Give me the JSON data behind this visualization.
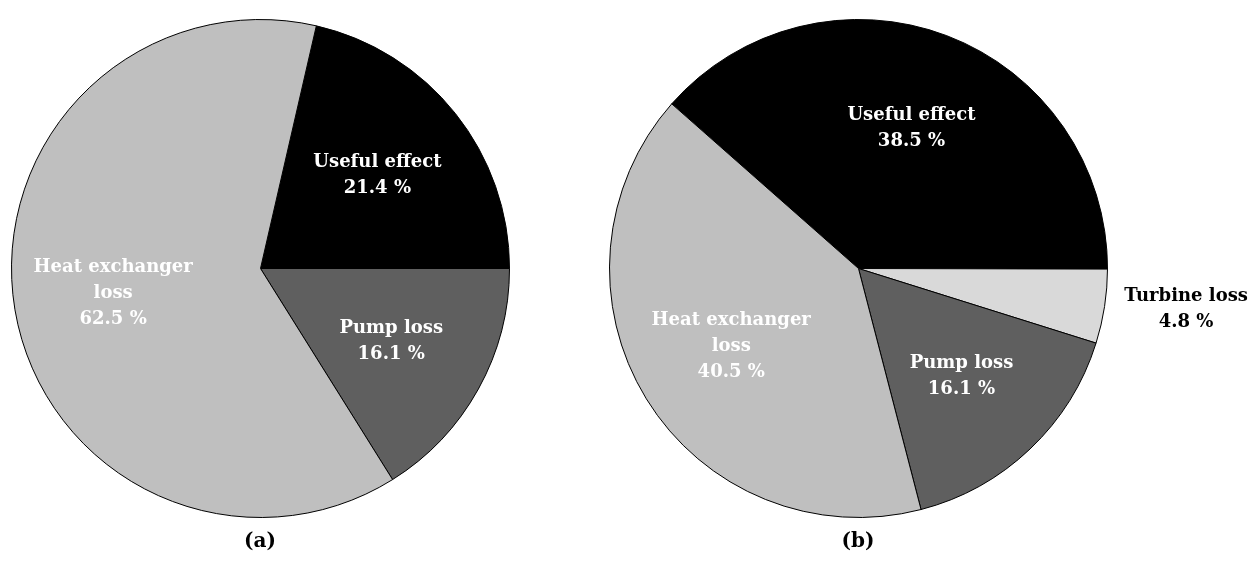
{
  "chart_data": [
    {
      "type": "pie",
      "title": "(a)",
      "categories": [
        "Useful effect",
        "Pump loss",
        "Heat exchanger loss"
      ],
      "values": [
        21.4,
        16.1,
        62.5
      ],
      "colors": [
        "#000000",
        "#5f5f5f",
        "#bfbfbf"
      ],
      "value_labels": [
        "21.4 %",
        "16.1 %",
        "62.5 %"
      ],
      "legend": false
    },
    {
      "type": "pie",
      "title": "(b)",
      "categories": [
        "Useful effect",
        "Turbine loss",
        "Pump loss",
        "Heat exchanger loss"
      ],
      "values": [
        38.5,
        4.8,
        16.1,
        40.5
      ],
      "colors": [
        "#000000",
        "#d9d9d9",
        "#5f5f5f",
        "#bfbfbf"
      ],
      "value_labels": [
        "38.5 %",
        "4.8 %",
        "16.1 %",
        "40.5 %"
      ],
      "legend": false
    }
  ]
}
